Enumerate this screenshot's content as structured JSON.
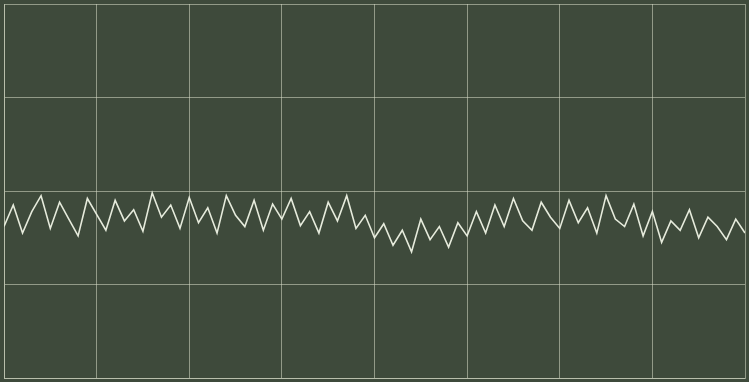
{
  "chart_data": {
    "type": "line",
    "marker": "none",
    "color": "#e6ebdc",
    "grid": true,
    "tick_labels": false,
    "x": [
      0.0,
      0.1,
      0.2,
      0.3,
      0.4,
      0.5,
      0.6,
      0.7,
      0.8,
      0.9,
      1.0,
      1.1,
      1.2,
      1.3,
      1.4,
      1.5,
      1.6,
      1.7,
      1.8,
      1.9,
      2.0,
      2.1,
      2.2,
      2.3,
      2.4,
      2.5,
      2.6,
      2.7,
      2.8,
      2.9,
      3.0,
      3.1,
      3.2,
      3.3,
      3.4,
      3.5,
      3.6,
      3.7,
      3.8,
      3.9,
      4.0,
      4.1,
      4.2,
      4.3,
      4.4,
      4.5,
      4.6,
      4.7,
      4.8,
      4.9,
      5.0,
      5.1,
      5.2,
      5.3,
      5.4,
      5.5,
      5.6,
      5.7,
      5.8,
      5.9,
      6.0,
      6.1,
      6.2,
      6.3,
      6.4,
      6.5,
      6.6,
      6.7,
      6.8,
      6.9,
      7.0,
      7.1,
      7.2,
      7.3,
      7.4,
      7.5,
      7.6,
      7.7,
      7.8,
      7.9,
      8.0
    ],
    "values": [
      1.62,
      1.85,
      1.55,
      1.78,
      1.95,
      1.6,
      1.88,
      1.7,
      1.52,
      1.92,
      1.75,
      1.58,
      1.9,
      1.68,
      1.8,
      1.57,
      1.98,
      1.72,
      1.85,
      1.6,
      1.93,
      1.66,
      1.82,
      1.55,
      1.95,
      1.74,
      1.62,
      1.9,
      1.58,
      1.86,
      1.7,
      1.92,
      1.63,
      1.78,
      1.55,
      1.88,
      1.68,
      1.95,
      1.6,
      1.74,
      1.5,
      1.65,
      1.42,
      1.58,
      1.35,
      1.7,
      1.48,
      1.62,
      1.4,
      1.66,
      1.52,
      1.78,
      1.55,
      1.85,
      1.62,
      1.92,
      1.68,
      1.58,
      1.88,
      1.72,
      1.6,
      1.9,
      1.66,
      1.82,
      1.55,
      1.95,
      1.7,
      1.62,
      1.86,
      1.52,
      1.78,
      1.45,
      1.68,
      1.58,
      1.8,
      1.5,
      1.72,
      1.62,
      1.48,
      1.7,
      1.55
    ],
    "xlim": [
      0,
      8
    ],
    "xticks": [
      0,
      1,
      2,
      3,
      4,
      5,
      6,
      7,
      8
    ],
    "ylim": [
      0,
      4
    ],
    "yticks": [
      0,
      1,
      2,
      3,
      4
    ]
  }
}
